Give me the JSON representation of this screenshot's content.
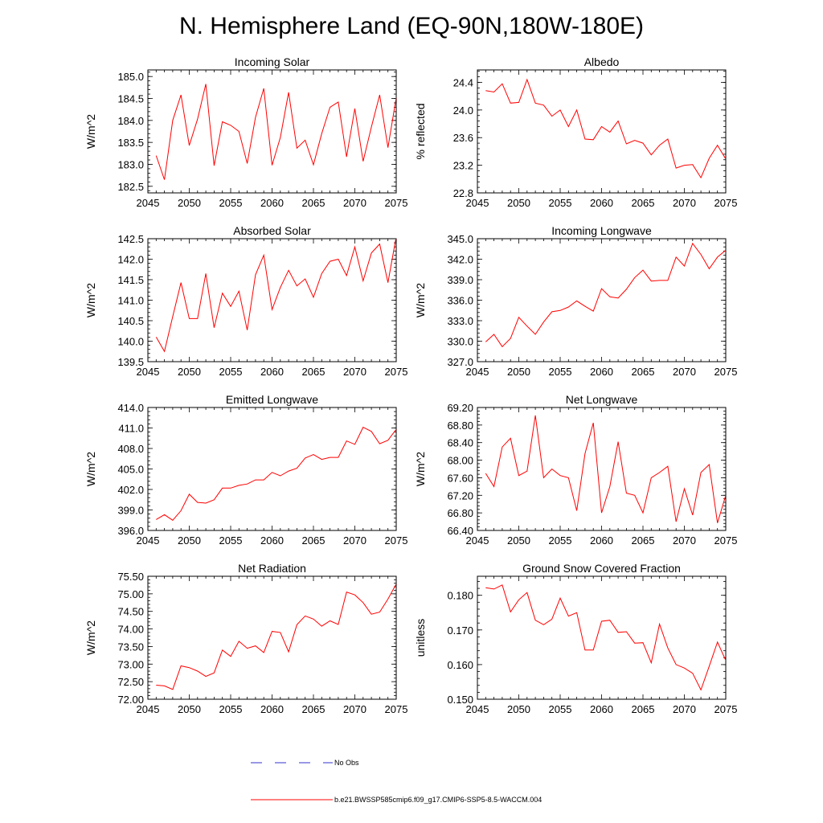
{
  "title": "N. Hemisphere Land (EQ-90N,180W-180E)",
  "legend": {
    "obs_label": "No Obs",
    "obs_color": "#3333cc",
    "model_label": "b.e21.BWSSP585cmip6.f09_g17.CMIP6-SSP5-8.5-WACCM.004",
    "model_color": "#ff0000"
  },
  "chart_data": [
    {
      "type": "line",
      "title": "Incoming Solar",
      "ylabel": "W/m^2",
      "xlim": [
        2045,
        2075
      ],
      "ylim": [
        182.35,
        185.15
      ],
      "xticks": [
        2045,
        2050,
        2055,
        2060,
        2065,
        2070,
        2075
      ],
      "yticks": [
        182.5,
        183.0,
        183.5,
        184.0,
        184.5,
        185.0
      ],
      "ytick_labels": [
        "182.5",
        "183.0",
        "183.5",
        "184.0",
        "184.5",
        "185.0"
      ],
      "x": [
        2046,
        2047,
        2048,
        2049,
        2050,
        2051,
        2052,
        2053,
        2054,
        2055,
        2056,
        2057,
        2058,
        2059,
        2060,
        2061,
        2062,
        2063,
        2064,
        2065,
        2066,
        2067,
        2068,
        2069,
        2070,
        2071,
        2072,
        2073,
        2074,
        2075
      ],
      "values": [
        183.2,
        182.65,
        184.0,
        184.58,
        183.43,
        184.03,
        184.83,
        182.97,
        183.97,
        183.89,
        183.75,
        183.02,
        184.07,
        184.73,
        182.98,
        183.61,
        184.64,
        183.37,
        183.55,
        182.99,
        183.7,
        184.3,
        184.42,
        183.17,
        184.27,
        183.07,
        183.85,
        184.58,
        183.38,
        184.52
      ]
    },
    {
      "type": "line",
      "title": "Albedo",
      "ylabel": "% reflected",
      "xlim": [
        2045,
        2075
      ],
      "ylim": [
        22.8,
        24.58
      ],
      "xticks": [
        2045,
        2050,
        2055,
        2060,
        2065,
        2070,
        2075
      ],
      "yticks": [
        22.8,
        23.2,
        23.6,
        24.0,
        24.4
      ],
      "ytick_labels": [
        "22.8",
        "23.2",
        "23.6",
        "24.0",
        "24.4"
      ],
      "x": [
        2046,
        2047,
        2048,
        2049,
        2050,
        2051,
        2052,
        2053,
        2054,
        2055,
        2056,
        2057,
        2058,
        2059,
        2060,
        2061,
        2062,
        2063,
        2064,
        2065,
        2066,
        2067,
        2068,
        2069,
        2070,
        2071,
        2072,
        2073,
        2074,
        2075
      ],
      "values": [
        24.28,
        24.26,
        24.38,
        24.1,
        24.11,
        24.44,
        24.1,
        24.07,
        23.91,
        24.0,
        23.76,
        24.0,
        23.58,
        23.57,
        23.76,
        23.68,
        23.84,
        23.51,
        23.56,
        23.52,
        23.35,
        23.49,
        23.58,
        23.16,
        23.2,
        23.21,
        23.02,
        23.3,
        23.49,
        23.29
      ]
    },
    {
      "type": "line",
      "title": "Absorbed Solar",
      "ylabel": "W/m^2",
      "xlim": [
        2045,
        2075
      ],
      "ylim": [
        139.5,
        142.5
      ],
      "xticks": [
        2045,
        2050,
        2055,
        2060,
        2065,
        2070,
        2075
      ],
      "yticks": [
        139.5,
        140.0,
        140.5,
        141.0,
        141.5,
        142.0,
        142.5
      ],
      "ytick_labels": [
        "139.5",
        "140.0",
        "140.5",
        "141.0",
        "141.5",
        "142.0",
        "142.5"
      ],
      "x": [
        2046,
        2047,
        2048,
        2049,
        2050,
        2051,
        2052,
        2053,
        2054,
        2055,
        2056,
        2057,
        2058,
        2059,
        2060,
        2061,
        2062,
        2063,
        2064,
        2065,
        2066,
        2067,
        2068,
        2069,
        2070,
        2071,
        2072,
        2073,
        2074,
        2075
      ],
      "values": [
        140.1,
        139.75,
        140.6,
        141.43,
        140.55,
        140.55,
        141.65,
        140.33,
        141.17,
        140.85,
        141.22,
        140.27,
        141.62,
        142.1,
        140.77,
        141.31,
        141.73,
        141.35,
        141.52,
        141.07,
        141.65,
        141.95,
        142.0,
        141.6,
        142.3,
        141.47,
        142.15,
        142.37,
        141.43,
        142.55
      ]
    },
    {
      "type": "line",
      "title": "Incoming Longwave",
      "ylabel": "W/m^2",
      "xlim": [
        2045,
        2075
      ],
      "ylim": [
        327.0,
        345.0
      ],
      "xticks": [
        2045,
        2050,
        2055,
        2060,
        2065,
        2070,
        2075
      ],
      "yticks": [
        327.0,
        330.0,
        333.0,
        336.0,
        339.0,
        342.0,
        345.0
      ],
      "ytick_labels": [
        "327.0",
        "330.0",
        "333.0",
        "336.0",
        "339.0",
        "342.0",
        "345.0"
      ],
      "x": [
        2046,
        2047,
        2048,
        2049,
        2050,
        2051,
        2052,
        2053,
        2054,
        2055,
        2056,
        2057,
        2058,
        2059,
        2060,
        2061,
        2062,
        2063,
        2064,
        2065,
        2066,
        2067,
        2068,
        2069,
        2070,
        2071,
        2072,
        2073,
        2074,
        2075
      ],
      "values": [
        329.9,
        331.0,
        329.2,
        330.4,
        333.5,
        332.2,
        331.0,
        332.8,
        334.3,
        334.5,
        335.0,
        335.9,
        335.1,
        334.4,
        337.7,
        336.5,
        336.3,
        337.6,
        339.3,
        340.4,
        338.8,
        338.9,
        338.9,
        342.3,
        341.0,
        344.3,
        342.7,
        340.6,
        342.3,
        343.3
      ]
    },
    {
      "type": "line",
      "title": "Emitted Longwave",
      "ylabel": "W/m^2",
      "xlim": [
        2045,
        2075
      ],
      "ylim": [
        396.0,
        414.0
      ],
      "xticks": [
        2045,
        2050,
        2055,
        2060,
        2065,
        2070,
        2075
      ],
      "yticks": [
        396.0,
        399.0,
        402.0,
        405.0,
        408.0,
        411.0,
        414.0
      ],
      "ytick_labels": [
        "396.0",
        "399.0",
        "402.0",
        "405.0",
        "408.0",
        "411.0",
        "414.0"
      ],
      "x": [
        2046,
        2047,
        2048,
        2049,
        2050,
        2051,
        2052,
        2053,
        2054,
        2055,
        2056,
        2057,
        2058,
        2059,
        2060,
        2061,
        2062,
        2063,
        2064,
        2065,
        2066,
        2067,
        2068,
        2069,
        2070,
        2071,
        2072,
        2073,
        2074,
        2075
      ],
      "values": [
        397.6,
        398.3,
        397.5,
        398.9,
        401.3,
        400.1,
        400.0,
        400.5,
        402.2,
        402.2,
        402.6,
        402.8,
        403.4,
        403.4,
        404.5,
        404.0,
        404.7,
        405.1,
        406.6,
        407.1,
        406.4,
        406.7,
        406.7,
        409.1,
        408.6,
        411.1,
        410.5,
        408.7,
        409.2,
        410.8
      ]
    },
    {
      "type": "line",
      "title": "Net Longwave",
      "ylabel": "W/m^2",
      "xlim": [
        2045,
        2075
      ],
      "ylim": [
        66.4,
        69.2
      ],
      "xticks": [
        2045,
        2050,
        2055,
        2060,
        2065,
        2070,
        2075
      ],
      "yticks": [
        66.4,
        66.8,
        67.2,
        67.6,
        68.0,
        68.4,
        68.8,
        69.2
      ],
      "ytick_labels": [
        "66.40",
        "66.80",
        "67.20",
        "67.60",
        "68.00",
        "68.40",
        "68.80",
        "69.20"
      ],
      "x": [
        2046,
        2047,
        2048,
        2049,
        2050,
        2051,
        2052,
        2053,
        2054,
        2055,
        2056,
        2057,
        2058,
        2059,
        2060,
        2061,
        2062,
        2063,
        2064,
        2065,
        2066,
        2067,
        2068,
        2069,
        2070,
        2071,
        2072,
        2073,
        2074,
        2075
      ],
      "values": [
        67.7,
        67.4,
        68.3,
        68.5,
        67.65,
        67.75,
        69.02,
        67.6,
        67.8,
        67.65,
        67.6,
        66.85,
        68.15,
        68.85,
        66.8,
        67.4,
        68.42,
        67.25,
        67.2,
        66.8,
        67.6,
        67.72,
        67.86,
        66.6,
        67.35,
        66.75,
        67.72,
        67.9,
        66.57,
        67.2
      ]
    },
    {
      "type": "line",
      "title": "Net Radiation",
      "ylabel": "W/m^2",
      "xlim": [
        2045,
        2075
      ],
      "ylim": [
        72.0,
        75.5
      ],
      "xticks": [
        2045,
        2050,
        2055,
        2060,
        2065,
        2070,
        2075
      ],
      "yticks": [
        72.0,
        72.5,
        73.0,
        73.5,
        74.0,
        74.5,
        75.0,
        75.5
      ],
      "ytick_labels": [
        "72.00",
        "72.50",
        "73.00",
        "73.50",
        "74.00",
        "74.50",
        "75.00",
        "75.50"
      ],
      "x": [
        2046,
        2047,
        2048,
        2049,
        2050,
        2051,
        2052,
        2053,
        2054,
        2055,
        2056,
        2057,
        2058,
        2059,
        2060,
        2061,
        2062,
        2063,
        2064,
        2065,
        2066,
        2067,
        2068,
        2069,
        2070,
        2071,
        2072,
        2073,
        2074,
        2075
      ],
      "values": [
        72.4,
        72.38,
        72.28,
        72.95,
        72.9,
        72.8,
        72.65,
        72.75,
        73.4,
        73.22,
        73.65,
        73.45,
        73.52,
        73.33,
        73.93,
        73.9,
        73.35,
        74.12,
        74.37,
        74.28,
        74.08,
        74.23,
        74.13,
        75.05,
        74.97,
        74.75,
        74.42,
        74.48,
        74.85,
        75.28
      ]
    },
    {
      "type": "line",
      "title": "Ground Snow Covered Fraction",
      "ylabel": "unitless",
      "xlim": [
        2045,
        2075
      ],
      "ylim": [
        0.15,
        0.1855
      ],
      "xticks": [
        2045,
        2050,
        2055,
        2060,
        2065,
        2070,
        2075
      ],
      "yticks": [
        0.15,
        0.16,
        0.17,
        0.18
      ],
      "ytick_labels": [
        "0.150",
        "0.160",
        "0.170",
        "0.180"
      ],
      "x": [
        2046,
        2047,
        2048,
        2049,
        2050,
        2051,
        2052,
        2053,
        2054,
        2055,
        2056,
        2057,
        2058,
        2059,
        2060,
        2061,
        2062,
        2063,
        2064,
        2065,
        2066,
        2067,
        2068,
        2069,
        2070,
        2071,
        2072,
        2073,
        2074,
        2075
      ],
      "values": [
        0.1822,
        0.1818,
        0.183,
        0.1752,
        0.1787,
        0.1808,
        0.1728,
        0.1715,
        0.1731,
        0.1792,
        0.174,
        0.175,
        0.1642,
        0.1642,
        0.1725,
        0.1728,
        0.1693,
        0.1695,
        0.1662,
        0.1663,
        0.1605,
        0.1717,
        0.1648,
        0.16,
        0.159,
        0.1575,
        0.1527,
        0.1595,
        0.1665,
        0.1612
      ]
    }
  ]
}
